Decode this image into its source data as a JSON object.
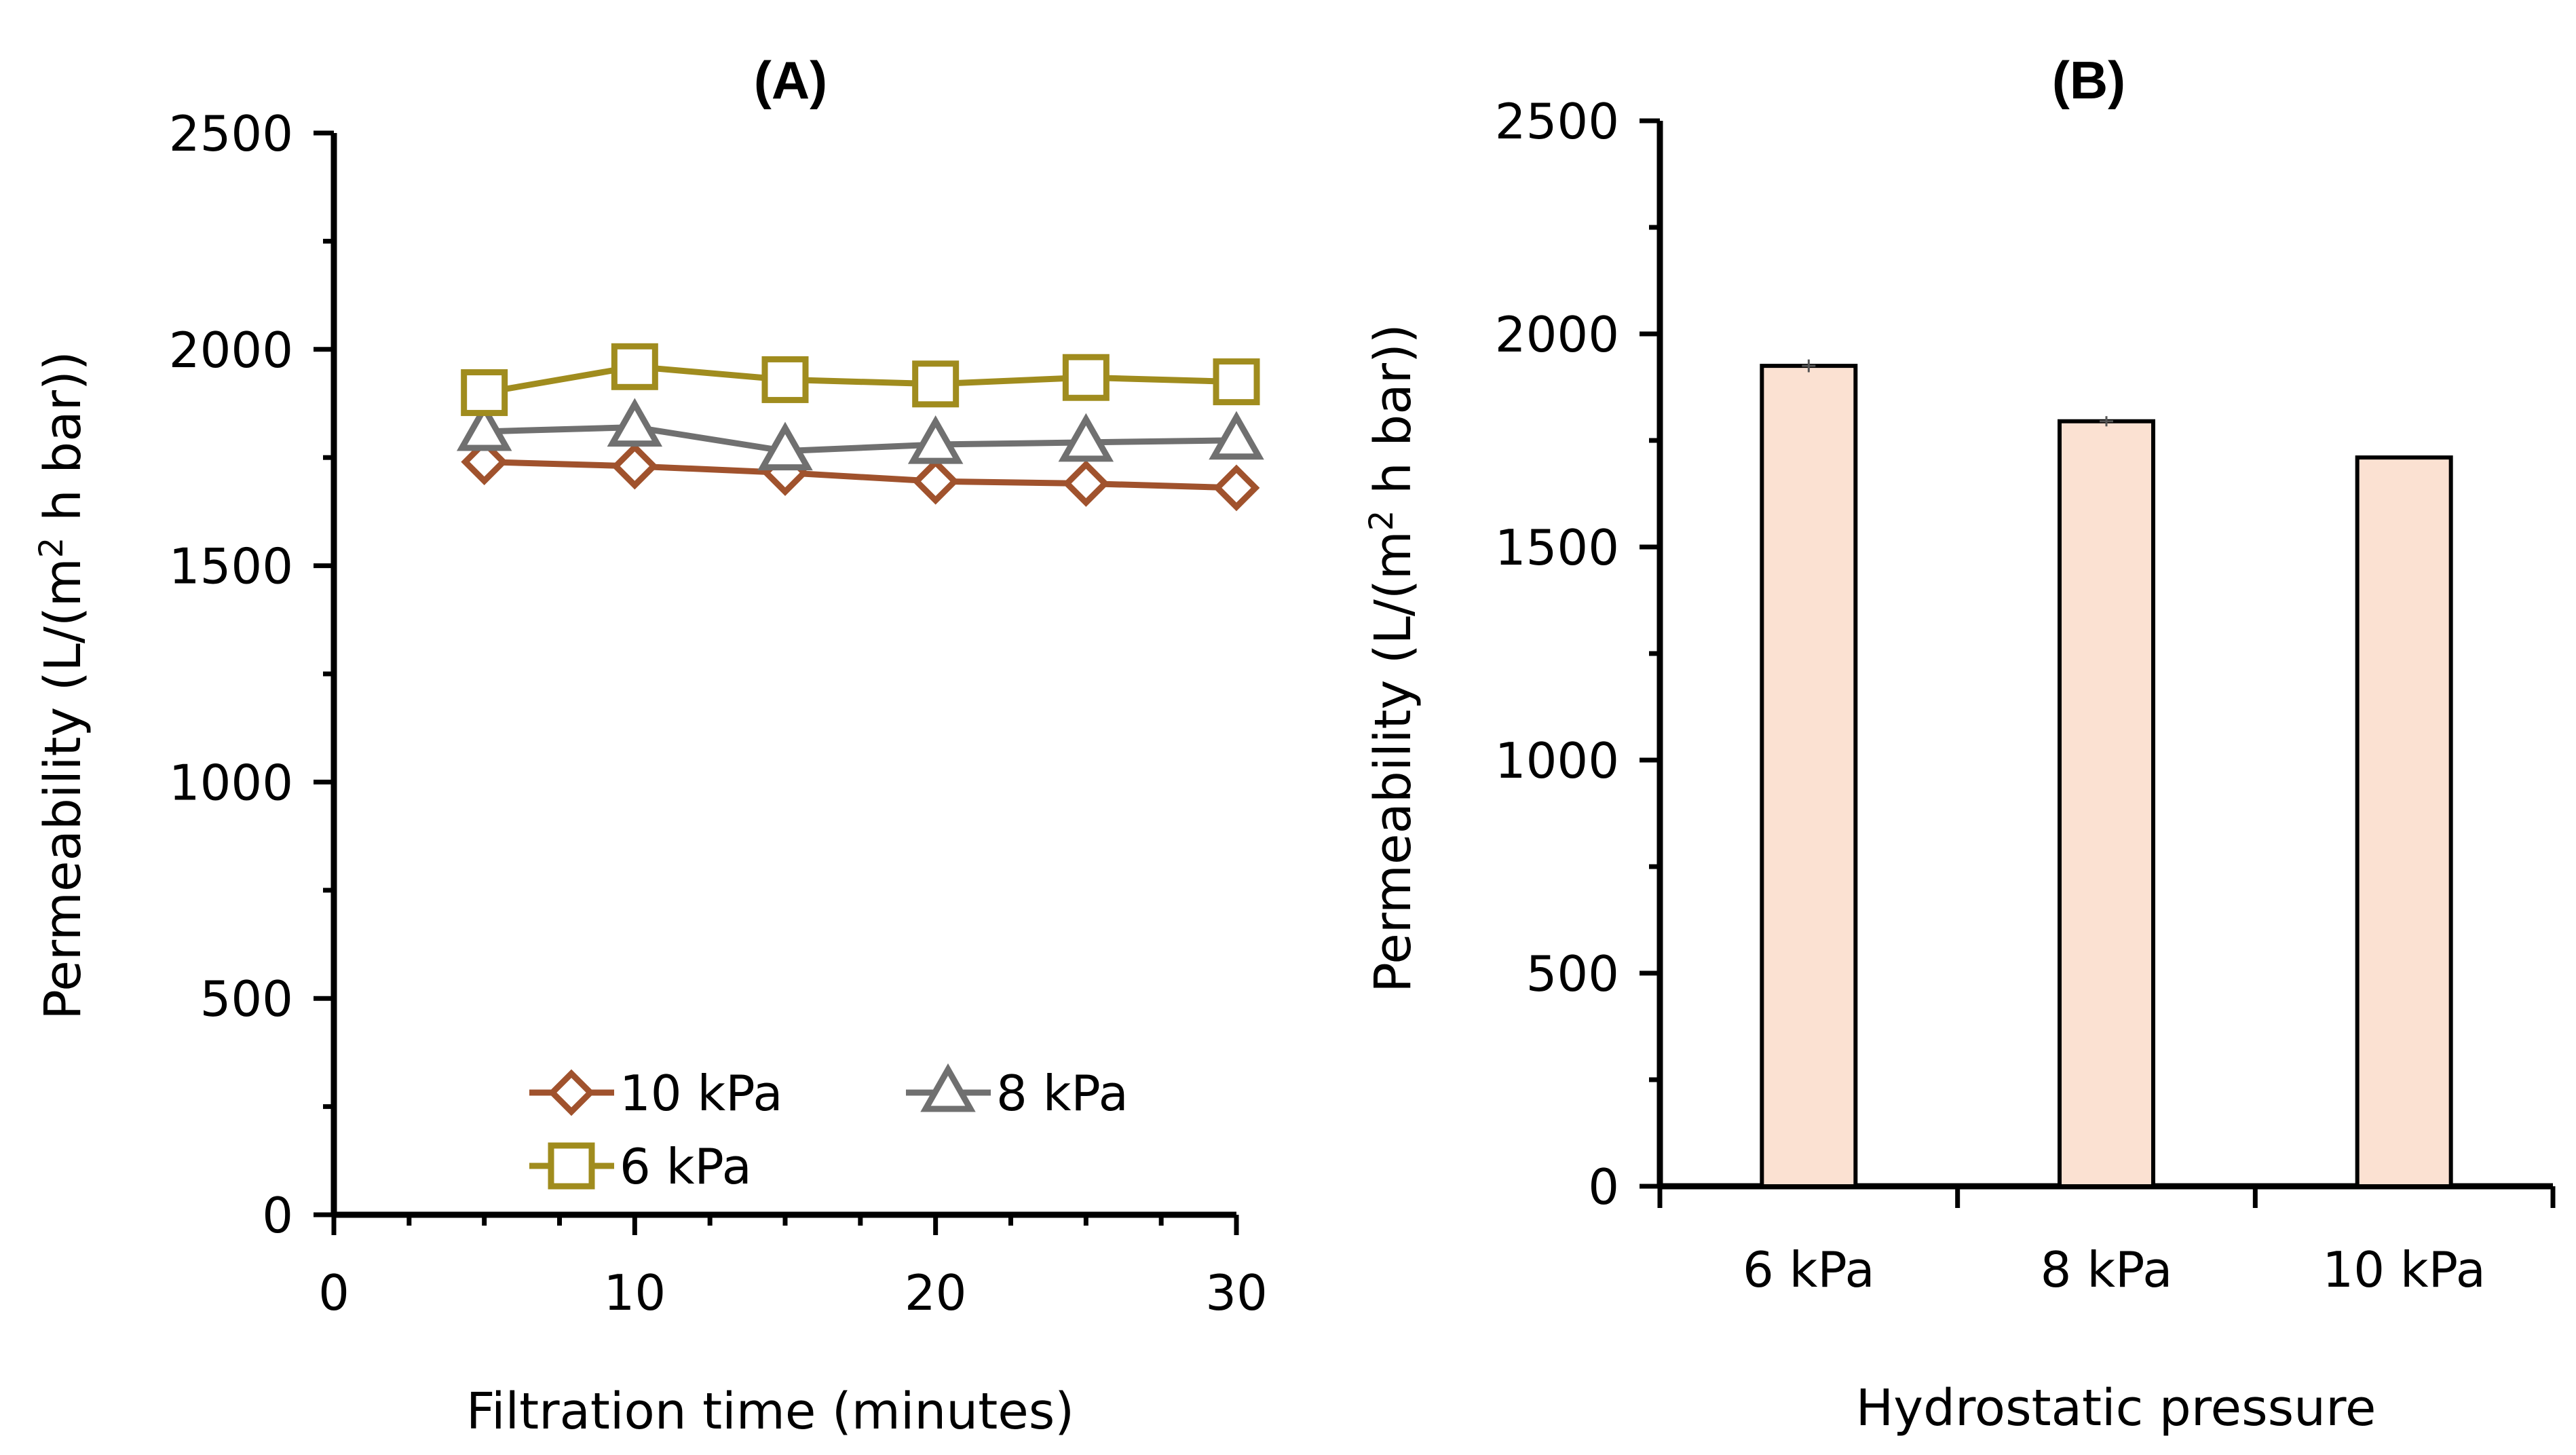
{
  "chart_data": [
    {
      "panel": "(A)",
      "type": "line",
      "xlabel": "Filtration time (minutes)",
      "ylabel_main": "Permeability (L/(m",
      "ylabel_sup": "2",
      "ylabel_tail": " h bar))",
      "xlim": [
        0,
        30
      ],
      "ylim": [
        0,
        2500
      ],
      "xticks": [
        0,
        10,
        20,
        30
      ],
      "xticks_minor": [
        2.5,
        5,
        7.5,
        12.5,
        15,
        17.5,
        22.5,
        25,
        27.5
      ],
      "yticks": [
        0,
        500,
        1000,
        1500,
        2000,
        2500
      ],
      "yticks_minor": [
        250,
        750,
        1250,
        1750,
        2250
      ],
      "x": [
        5,
        10,
        15,
        20,
        25,
        30
      ],
      "series": [
        {
          "name": "10 kPa",
          "marker": "diamond",
          "color": "#A0522D",
          "values": [
            1740,
            1730,
            1715,
            1695,
            1690,
            1680
          ]
        },
        {
          "name": "8 kPa",
          "marker": "triangle",
          "color": "#707070",
          "values": [
            1810,
            1820,
            1765,
            1780,
            1785,
            1790
          ]
        },
        {
          "name": "6 kPa",
          "marker": "square",
          "color": "#A08C1E",
          "values": [
            1900,
            1960,
            1930,
            1920,
            1935,
            1925
          ]
        }
      ],
      "legend": "bottom-center",
      "grid": false
    },
    {
      "panel": "(B)",
      "type": "bar",
      "xlabel": "Hydrostatic pressure",
      "ylabel_main": "Permeability (L/(m",
      "ylabel_sup": "2",
      "ylabel_tail": " h bar))",
      "ylim": [
        0,
        2500
      ],
      "yticks": [
        0,
        500,
        1000,
        1500,
        2000,
        2500
      ],
      "yticks_minor": [
        250,
        750,
        1250,
        1750,
        2250
      ],
      "categories": [
        "6 kPa",
        "8 kPa",
        "10 kPa"
      ],
      "values": [
        1925,
        1795,
        1710
      ],
      "errors": [
        15,
        12,
        0
      ],
      "bar_color": "#FBE1D2",
      "grid": false
    }
  ]
}
